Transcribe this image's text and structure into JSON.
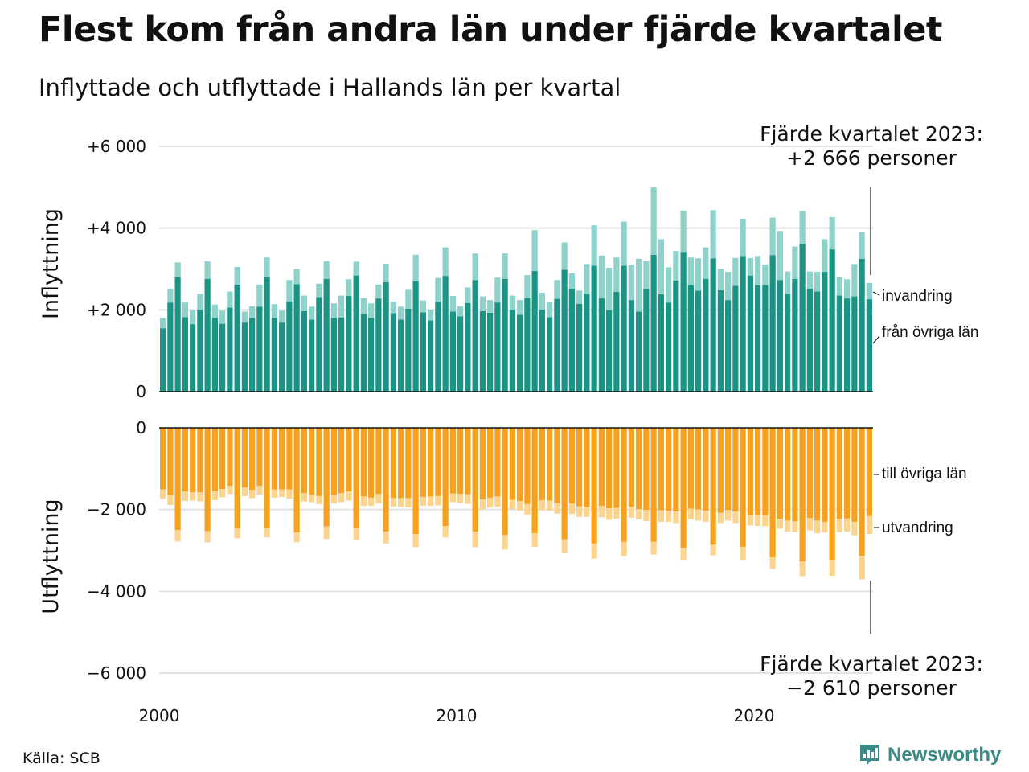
{
  "title": "Flest kom från andra län under fjärde kvartalet",
  "subtitle": "Inflyttade och utflyttade i Hallands län per kvartal",
  "source": "Källa: SCB",
  "brand": "Newsworthy",
  "colors": {
    "in_dark": "#1a9484",
    "in_light": "#8dd3cb",
    "out_dark": "#f7a11d",
    "out_light": "#fcd48e",
    "grid": "#e2e2e2",
    "brand": "#3a8a85"
  },
  "chart_data": {
    "type": "bar",
    "stacked": true,
    "panels": [
      {
        "name": "Inflyttning",
        "ylim": [
          0,
          6000
        ],
        "ticks": [
          {
            "value": 0,
            "label": "0"
          },
          {
            "value": 2000,
            "label": "+2 000"
          },
          {
            "value": 4000,
            "label": "+4 000"
          },
          {
            "value": 6000,
            "label": "+6 000"
          }
        ]
      },
      {
        "name": "Utflyttning",
        "ylim": [
          -6000,
          0
        ],
        "ticks": [
          {
            "value": 0,
            "label": "0"
          },
          {
            "value": -2000,
            "label": "−2 000"
          },
          {
            "value": -4000,
            "label": "−4 000"
          },
          {
            "value": -6000,
            "label": "−6 000"
          }
        ]
      }
    ],
    "x_start_year": 2000,
    "x_ticks": [
      {
        "year": 2000,
        "label": "2000"
      },
      {
        "year": 2010,
        "label": "2010"
      },
      {
        "year": 2020,
        "label": "2020"
      }
    ],
    "series": [
      {
        "name": "från övriga län",
        "panel": "Inflyttning",
        "values": [
          1550,
          2180,
          2800,
          1820,
          1650,
          2010,
          2760,
          1800,
          1660,
          2060,
          2620,
          1690,
          1800,
          2080,
          2800,
          1800,
          1690,
          2210,
          2630,
          1970,
          1760,
          2310,
          2760,
          1800,
          1810,
          2340,
          2840,
          1900,
          1800,
          2280,
          2680,
          1920,
          1760,
          2030,
          2700,
          1940,
          1740,
          2200,
          2830,
          1960,
          1840,
          2170,
          2730,
          1970,
          1930,
          2180,
          2760,
          2000,
          1880,
          2290,
          2950,
          2010,
          1820,
          2270,
          2980,
          2520,
          2150,
          2390,
          3080,
          2280,
          1990,
          2440,
          3080,
          2240,
          1960,
          2510,
          3350,
          2380,
          2180,
          2720,
          3420,
          2620,
          2470,
          2760,
          3260,
          2480,
          2240,
          2590,
          3320,
          2840,
          2600,
          2610,
          3340,
          2730,
          2390,
          2760,
          3620,
          2520,
          2450,
          2930,
          3480,
          2350,
          2280,
          2330,
          3250,
          2260
        ]
      },
      {
        "name": "invandring",
        "panel": "Inflyttning",
        "values": [
          250,
          340,
          360,
          360,
          340,
          380,
          430,
          330,
          320,
          390,
          430,
          270,
          290,
          540,
          480,
          340,
          290,
          520,
          370,
          380,
          320,
          330,
          430,
          360,
          540,
          410,
          340,
          390,
          360,
          340,
          450,
          280,
          320,
          460,
          650,
          290,
          270,
          580,
          700,
          380,
          250,
          380,
          650,
          360,
          310,
          610,
          620,
          350,
          360,
          560,
          1000,
          410,
          370,
          460,
          670,
          370,
          320,
          730,
          990,
          1050,
          1040,
          840,
          1080,
          860,
          1290,
          680,
          1650,
          1350,
          860,
          720,
          1010,
          660,
          790,
          770,
          1180,
          520,
          690,
          680,
          910,
          430,
          720,
          500,
          920,
          1200,
          550,
          790,
          800,
          420,
          480,
          800,
          790,
          460,
          470,
          790,
          650,
          400
        ]
      },
      {
        "name": "till övriga län",
        "panel": "Utflyttning",
        "values": [
          -1510,
          -1650,
          -2500,
          -1560,
          -1580,
          -1580,
          -2530,
          -1540,
          -1500,
          -1420,
          -2460,
          -1460,
          -1520,
          -1420,
          -2440,
          -1510,
          -1510,
          -1510,
          -2560,
          -1600,
          -1640,
          -1670,
          -2410,
          -1640,
          -1600,
          -1560,
          -2440,
          -1680,
          -1710,
          -1620,
          -2540,
          -1720,
          -1720,
          -1720,
          -2600,
          -1690,
          -1680,
          -1670,
          -2400,
          -1610,
          -1620,
          -1630,
          -2540,
          -1750,
          -1710,
          -1680,
          -2620,
          -1760,
          -1790,
          -1860,
          -2580,
          -1770,
          -1780,
          -1850,
          -2730,
          -1850,
          -1920,
          -1930,
          -2830,
          -1910,
          -1970,
          -1960,
          -2790,
          -1930,
          -1990,
          -2010,
          -2790,
          -2020,
          -2030,
          -2050,
          -2940,
          -1980,
          -2000,
          -2030,
          -2860,
          -2080,
          -2010,
          -2050,
          -2910,
          -2130,
          -2130,
          -2140,
          -3170,
          -2230,
          -2270,
          -2290,
          -3270,
          -2210,
          -2270,
          -2300,
          -3230,
          -2230,
          -2220,
          -2300,
          -3130,
          -2160
        ]
      },
      {
        "name": "utvandring",
        "panel": "Utflyttning",
        "values": [
          -230,
          -240,
          -280,
          -230,
          -200,
          -220,
          -270,
          -230,
          -200,
          -200,
          -240,
          -210,
          -200,
          -210,
          -240,
          -200,
          -180,
          -220,
          -240,
          -200,
          -180,
          -200,
          -310,
          -210,
          -220,
          -220,
          -310,
          -230,
          -200,
          -230,
          -290,
          -210,
          -220,
          -230,
          -320,
          -220,
          -230,
          -230,
          -280,
          -210,
          -220,
          -230,
          -380,
          -250,
          -240,
          -250,
          -360,
          -230,
          -240,
          -260,
          -330,
          -250,
          -250,
          -250,
          -340,
          -260,
          -260,
          -250,
          -370,
          -280,
          -280,
          -260,
          -350,
          -270,
          -250,
          -270,
          -310,
          -280,
          -270,
          -280,
          -290,
          -260,
          -270,
          -270,
          -260,
          -250,
          -260,
          -280,
          -320,
          -260,
          -270,
          -270,
          -280,
          -240,
          -270,
          -260,
          -360,
          -300,
          -310,
          -260,
          -390,
          -320,
          -320,
          -330,
          -580,
          -440
        ]
      }
    ],
    "annotations": {
      "top": [
        "Fjärde kvartalet 2023:",
        "+2 666 personer"
      ],
      "bottom": [
        "Fjärde kvartalet 2023:",
        "−2 610 personer"
      ]
    }
  }
}
